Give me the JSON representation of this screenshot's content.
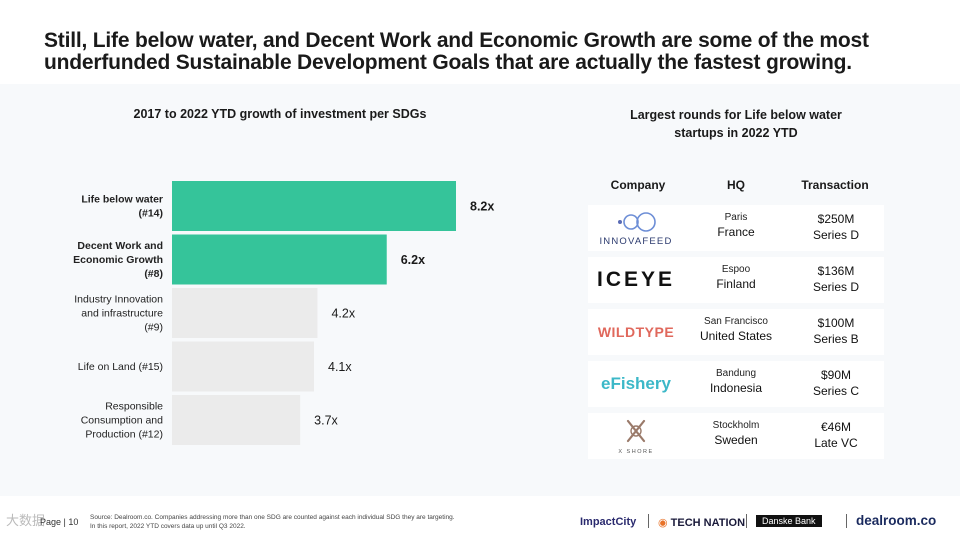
{
  "headline": {
    "line1": "Still, Life below water, and Decent Work and Economic Growth are some of the most",
    "line2": "underfunded Sustainable Development Goals that are actually the fastest growing."
  },
  "chart_data": {
    "type": "bar",
    "orientation": "horizontal",
    "title": "2017 to 2022 YTD growth of investment per SDGs",
    "categories": [
      [
        "Life below water",
        "(#14)"
      ],
      [
        "Decent Work and",
        "Economic Growth",
        "(#8)"
      ],
      [
        "Industry Innovation",
        "and infrastructure",
        "(#9)"
      ],
      [
        "Life on Land (#15)"
      ],
      [
        "Responsible",
        "Consumption and",
        "Production (#12)"
      ]
    ],
    "values": [
      8.2,
      6.2,
      4.2,
      4.1,
      3.7
    ],
    "value_labels": [
      "8.2x",
      "6.2x",
      "4.2x",
      "4.1x",
      "3.7x"
    ],
    "highlighted": [
      true,
      true,
      false,
      false,
      false
    ],
    "xlim": [
      0,
      8.2
    ],
    "grid": false,
    "colors": {
      "highlight": "#35c49a",
      "default": "#ebebeb"
    }
  },
  "rounds": {
    "title_line1": "Largest rounds for Life below water",
    "title_line2": "startups in 2022 YTD",
    "headers": {
      "company": "Company",
      "hq": "HQ",
      "transaction": "Transaction"
    },
    "rows": [
      {
        "logo": "INNOVAFEED",
        "city": "Paris",
        "country": "France",
        "amount": "$250M",
        "round": "Series D"
      },
      {
        "logo": "ICEYE",
        "city": "Espoo",
        "country": "Finland",
        "amount": "$136M",
        "round": "Series D"
      },
      {
        "logo": "WILDTYPE",
        "city": "San Francisco",
        "country": "United States",
        "amount": "$100M",
        "round": "Series B"
      },
      {
        "logo": "eFishery",
        "city": "Bandung",
        "country": "Indonesia",
        "amount": "$90M",
        "round": "Series C"
      },
      {
        "logo": "X SHORE",
        "city": "Stockholm",
        "country": "Sweden",
        "amount": "€46M",
        "round": "Late VC"
      }
    ]
  },
  "footer": {
    "page": "Page | 10",
    "source_line1": "Source: Dealroom.co. Companies addressing more than one SDG are counted against each individual SDG they are targeting.",
    "source_line2": "In this report, 2022 YTD covers data up until Q3 2022.",
    "partners": [
      "ImpactCity",
      "TECH NATION",
      "Danske Bank",
      "dealroom.co"
    ],
    "watermark": "大数据"
  }
}
